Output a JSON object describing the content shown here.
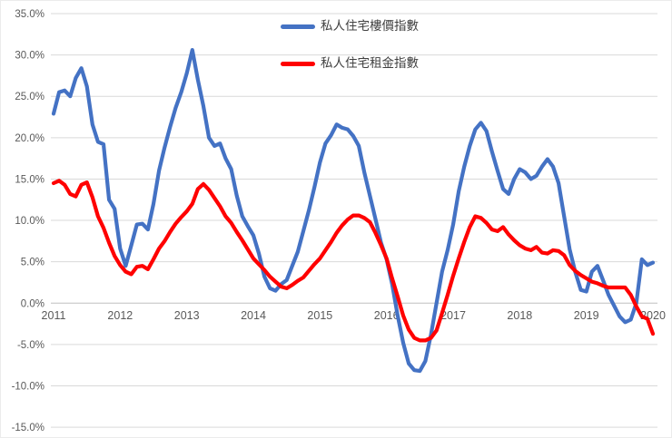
{
  "chart_data": {
    "type": "line",
    "title": "",
    "xlabel": "",
    "ylabel": "",
    "x_start": "2011-01",
    "x_end": "2020-01",
    "x_frequency": "monthly",
    "x_tick_labels": [
      "2011",
      "2012",
      "2013",
      "2014",
      "2015",
      "2016",
      "2017",
      "2018",
      "2019",
      "2020"
    ],
    "y_tick_labels": [
      "35.0%",
      "30.0%",
      "25.0%",
      "20.0%",
      "15.0%",
      "10.0%",
      "5.0%",
      "0.0%",
      "-5.0%",
      "-10.0%",
      "-15.0%"
    ],
    "ylim": [
      -15,
      35
    ],
    "ytick_step": 5,
    "grid": "horizontal",
    "gridline_color": "#d9d9d9",
    "zero_axis_color": "#bfbfbf",
    "tick_label_color": "#595959",
    "legend_position": "top-center",
    "series": [
      {
        "name": "私人住宅樓價指數",
        "color": "#4472C4",
        "values": [
          22.9,
          25.5,
          25.7,
          25.0,
          27.2,
          28.4,
          26.2,
          21.6,
          19.5,
          19.2,
          12.5,
          11.4,
          6.6,
          4.5,
          7.0,
          9.5,
          9.6,
          8.9,
          12.0,
          16.0,
          18.8,
          21.3,
          23.6,
          25.5,
          27.8,
          30.6,
          27.0,
          23.8,
          20.0,
          19.0,
          19.3,
          17.5,
          16.2,
          13.0,
          10.5,
          9.3,
          8.2,
          6.0,
          3.2,
          1.8,
          1.5,
          2.3,
          2.8,
          4.5,
          6.2,
          8.7,
          11.2,
          14.0,
          17.0,
          19.3,
          20.3,
          21.6,
          21.2,
          21.0,
          20.2,
          19.0,
          15.8,
          13.0,
          10.2,
          7.3,
          5.3,
          2.3,
          -1.5,
          -4.8,
          -7.3,
          -8.1,
          -8.2,
          -7.0,
          -3.8,
          0.0,
          3.8,
          6.4,
          9.5,
          13.5,
          16.5,
          19.0,
          21.0,
          21.8,
          20.8,
          18.3,
          16.0,
          13.8,
          13.2,
          15.0,
          16.2,
          15.8,
          15.0,
          15.4,
          16.5,
          17.4,
          16.5,
          14.5,
          10.5,
          6.5,
          3.8,
          1.6,
          1.4,
          3.8,
          4.5,
          2.8,
          1.0,
          -0.3,
          -1.6,
          -2.3,
          -2.0,
          0.0,
          5.3,
          4.6,
          4.9
        ]
      },
      {
        "name": "私人住宅租金指數",
        "color": "#FF0000",
        "values": [
          14.5,
          14.8,
          14.3,
          13.2,
          12.9,
          14.3,
          14.6,
          12.8,
          10.5,
          9.1,
          7.3,
          5.7,
          4.6,
          3.8,
          3.5,
          4.4,
          4.5,
          4.1,
          5.3,
          6.6,
          7.5,
          8.6,
          9.6,
          10.4,
          11.1,
          12.0,
          13.8,
          14.4,
          13.7,
          12.7,
          11.7,
          10.5,
          9.7,
          8.6,
          7.6,
          6.5,
          5.4,
          4.7,
          4.0,
          3.2,
          2.6,
          2.0,
          1.8,
          2.2,
          2.7,
          3.1,
          3.9,
          4.7,
          5.4,
          6.4,
          7.4,
          8.5,
          9.4,
          10.1,
          10.6,
          10.6,
          10.3,
          9.8,
          8.5,
          7.0,
          5.4,
          3.0,
          0.8,
          -1.5,
          -3.2,
          -4.2,
          -4.5,
          -4.5,
          -4.2,
          -3.3,
          -1.2,
          1.0,
          3.3,
          5.4,
          7.4,
          9.2,
          10.5,
          10.3,
          9.7,
          8.9,
          8.7,
          9.2,
          8.3,
          7.6,
          7.0,
          6.6,
          6.4,
          6.8,
          6.1,
          6.0,
          6.4,
          6.3,
          5.8,
          4.6,
          3.9,
          3.4,
          3.0,
          2.6,
          2.4,
          2.1,
          1.9,
          1.9,
          1.9,
          1.9,
          1.0,
          -0.4,
          -1.6,
          -1.9,
          -3.7
        ]
      }
    ]
  },
  "legend": {
    "items": [
      {
        "label": "私人住宅樓價指數",
        "color": "#4472C4"
      },
      {
        "label": "私人住宅租金指數",
        "color": "#FF0000"
      }
    ]
  }
}
